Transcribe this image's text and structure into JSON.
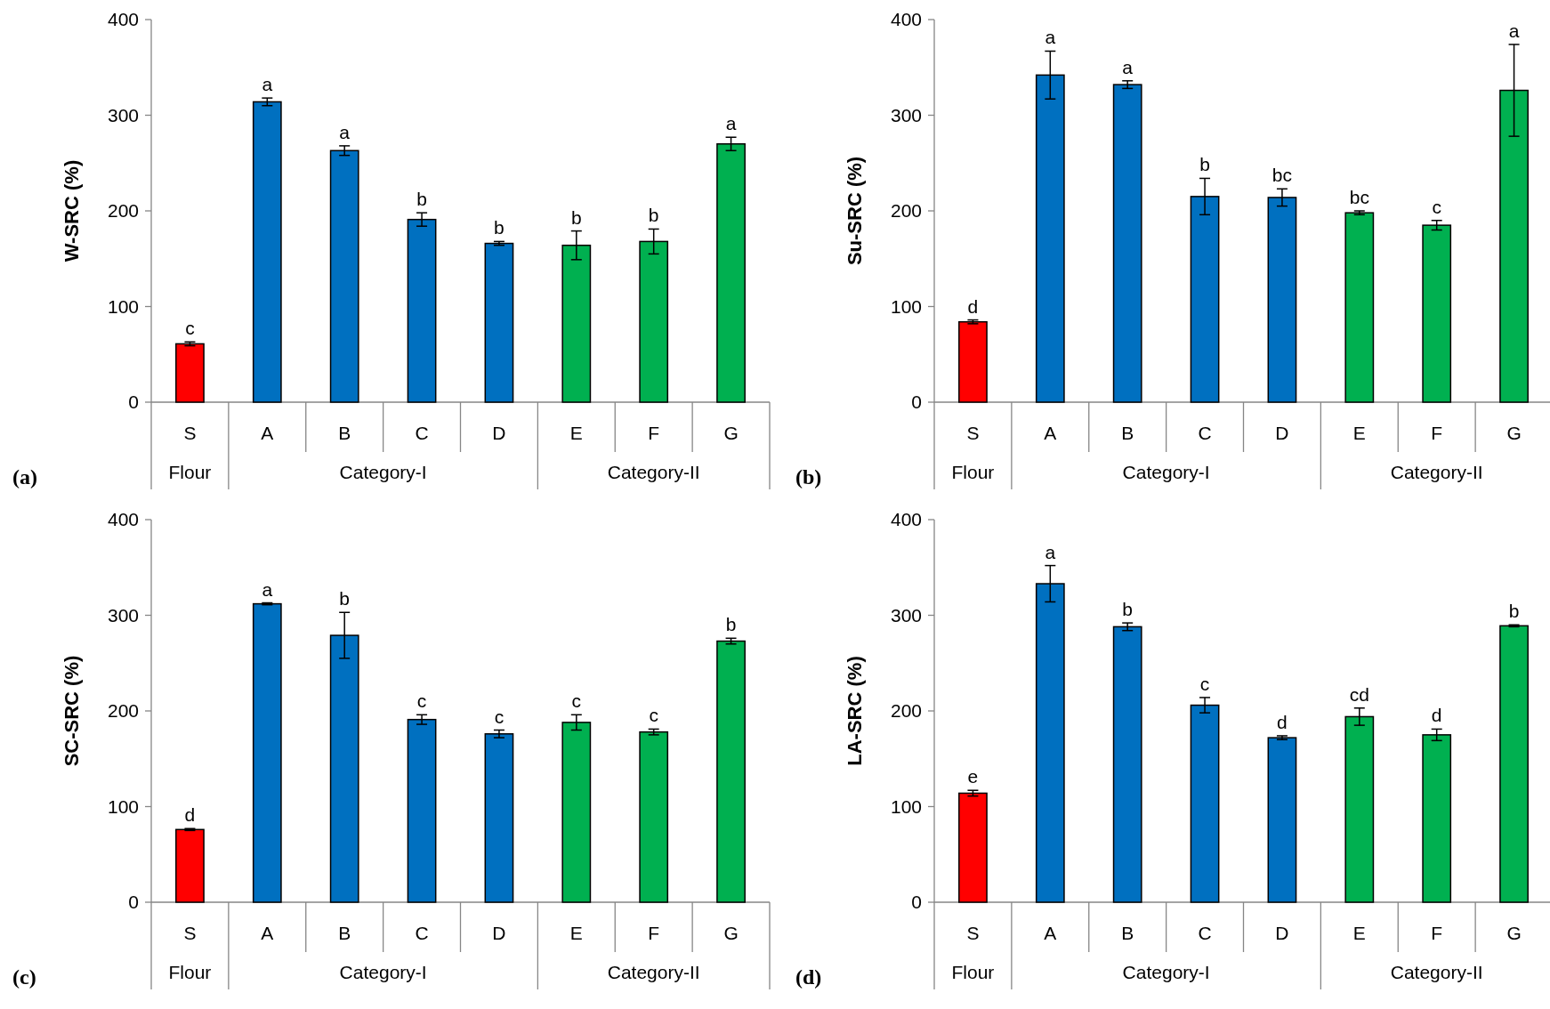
{
  "chart_data": [
    {
      "type": "bar",
      "title": "(a)",
      "ylabel": "W-SRC (%)",
      "categories": [
        "S",
        "A",
        "B",
        "C",
        "D",
        "E",
        "F",
        "G"
      ],
      "values": [
        61,
        314,
        263,
        191,
        166,
        164,
        168,
        270
      ],
      "errors": [
        2,
        4,
        5,
        7,
        2,
        15,
        13,
        7
      ],
      "colors": [
        "#ff0000",
        "#0070c0",
        "#0070c0",
        "#0070c0",
        "#0070c0",
        "#00b050",
        "#00b050",
        "#00b050"
      ],
      "ylim": [
        0,
        400
      ],
      "yticks": [
        0,
        100,
        200,
        300,
        400
      ],
      "grid": false,
      "annotations": [
        "Flour",
        "Category-I",
        "Category-II",
        {
          "text": "c",
          "x": "S",
          "y": 63
        },
        {
          "text": "a",
          "x": "A",
          "y": 318
        },
        {
          "text": "a",
          "x": "B",
          "y": 268
        },
        {
          "text": "b",
          "x": "C",
          "y": 198
        },
        {
          "text": "b",
          "x": "D",
          "y": 168
        },
        {
          "text": "b",
          "x": "E",
          "y": 179
        },
        {
          "text": "b",
          "x": "F",
          "y": 181
        },
        {
          "text": "a",
          "x": "G",
          "y": 277
        }
      ]
    },
    {
      "type": "bar",
      "title": "(b)",
      "ylabel": "Su-SRC (%)",
      "categories": [
        "S",
        "A",
        "B",
        "C",
        "D",
        "E",
        "F",
        "G"
      ],
      "values": [
        84,
        342,
        332,
        215,
        214,
        198,
        185,
        326
      ],
      "errors": [
        2,
        25,
        4,
        19,
        9,
        2,
        5,
        48
      ],
      "colors": [
        "#ff0000",
        "#0070c0",
        "#0070c0",
        "#0070c0",
        "#0070c0",
        "#00b050",
        "#00b050",
        "#00b050"
      ],
      "ylim": [
        0,
        400
      ],
      "yticks": [
        0,
        100,
        200,
        300,
        400
      ],
      "grid": false,
      "annotations": [
        "Flour",
        "Category-I",
        "Category-II",
        {
          "text": "d",
          "x": "S",
          "y": 86
        },
        {
          "text": "a",
          "x": "A",
          "y": 367
        },
        {
          "text": "a",
          "x": "B",
          "y": 336
        },
        {
          "text": "b",
          "x": "C",
          "y": 234
        },
        {
          "text": "bc",
          "x": "D",
          "y": 223
        },
        {
          "text": "bc",
          "x": "E",
          "y": 200
        },
        {
          "text": "c",
          "x": "F",
          "y": 190
        },
        {
          "text": "a",
          "x": "G",
          "y": 374
        }
      ]
    },
    {
      "type": "bar",
      "title": "(c)",
      "ylabel": "SC-SRC (%)",
      "categories": [
        "S",
        "A",
        "B",
        "C",
        "D",
        "E",
        "F",
        "G"
      ],
      "values": [
        76,
        312,
        279,
        191,
        176,
        188,
        178,
        273
      ],
      "errors": [
        1,
        1,
        24,
        5,
        4,
        8,
        3,
        3
      ],
      "colors": [
        "#ff0000",
        "#0070c0",
        "#0070c0",
        "#0070c0",
        "#0070c0",
        "#00b050",
        "#00b050",
        "#00b050"
      ],
      "ylim": [
        0,
        400
      ],
      "yticks": [
        0,
        100,
        200,
        300,
        400
      ],
      "grid": false,
      "annotations": [
        "Flour",
        "Category-I",
        "Category-II",
        {
          "text": "d",
          "x": "S",
          "y": 77
        },
        {
          "text": "a",
          "x": "A",
          "y": 313
        },
        {
          "text": "b",
          "x": "B",
          "y": 303
        },
        {
          "text": "c",
          "x": "C",
          "y": 196
        },
        {
          "text": "c",
          "x": "D",
          "y": 180
        },
        {
          "text": "c",
          "x": "E",
          "y": 196
        },
        {
          "text": "c",
          "x": "F",
          "y": 181
        },
        {
          "text": "b",
          "x": "G",
          "y": 276
        }
      ]
    },
    {
      "type": "bar",
      "title": "(d)",
      "ylabel": "LA-SRC (%)",
      "categories": [
        "S",
        "A",
        "B",
        "C",
        "D",
        "E",
        "F",
        "G"
      ],
      "values": [
        114,
        333,
        288,
        206,
        172,
        194,
        175,
        289
      ],
      "errors": [
        3,
        19,
        4,
        8,
        2,
        9,
        6,
        1
      ],
      "colors": [
        "#ff0000",
        "#0070c0",
        "#0070c0",
        "#0070c0",
        "#0070c0",
        "#00b050",
        "#00b050",
        "#00b050"
      ],
      "ylim": [
        0,
        400
      ],
      "yticks": [
        0,
        100,
        200,
        300,
        400
      ],
      "grid": false,
      "annotations": [
        "Flour",
        "Category-I",
        "Category-II",
        {
          "text": "e",
          "x": "S",
          "y": 117
        },
        {
          "text": "a",
          "x": "A",
          "y": 352
        },
        {
          "text": "b",
          "x": "B",
          "y": 292
        },
        {
          "text": "c",
          "x": "C",
          "y": 214
        },
        {
          "text": "d",
          "x": "D",
          "y": 174
        },
        {
          "text": "cd",
          "x": "E",
          "y": 203
        },
        {
          "text": "d",
          "x": "F",
          "y": 181
        },
        {
          "text": "b",
          "x": "G",
          "y": 290
        }
      ]
    }
  ]
}
